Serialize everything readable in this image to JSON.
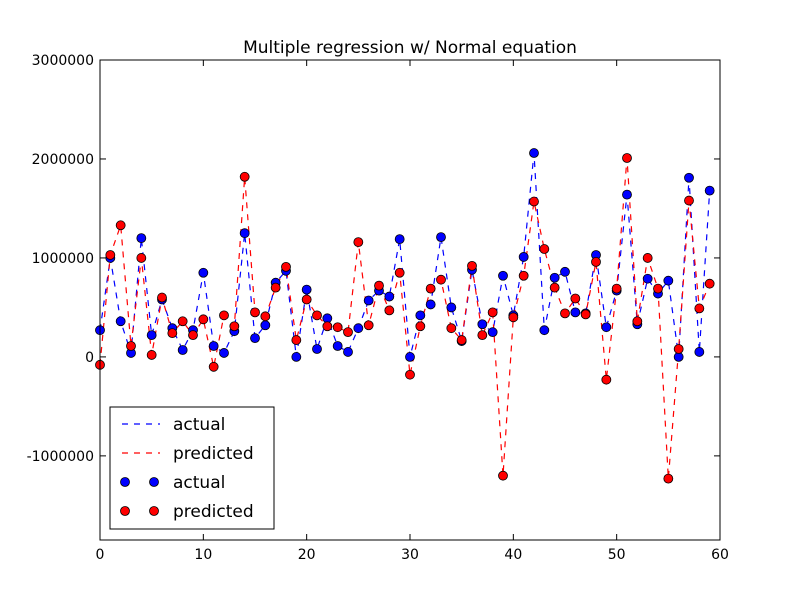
{
  "chart_data": {
    "type": "line",
    "title": "Multiple regression w/ Normal equation",
    "xlabel": "",
    "ylabel": "",
    "xlim": [
      0,
      60
    ],
    "ylim": [
      -1850000,
      3000000
    ],
    "x_ticks": [
      "0",
      "10",
      "20",
      "30",
      "40",
      "50",
      "60"
    ],
    "y_ticks": [
      "-1000000",
      "0",
      "1000000",
      "2000000",
      "3000000"
    ],
    "x_tick_values": [
      0,
      10,
      20,
      30,
      40,
      50,
      60
    ],
    "y_tick_values": [
      -1000000,
      0,
      1000000,
      2000000,
      3000000
    ],
    "grid": false,
    "legend_position": "lower-left",
    "legend": [
      "actual",
      "predicted",
      "actual",
      "predicted"
    ],
    "x": [
      0,
      1,
      2,
      3,
      4,
      5,
      6,
      7,
      8,
      9,
      10,
      11,
      12,
      13,
      14,
      15,
      16,
      17,
      18,
      19,
      20,
      21,
      22,
      23,
      24,
      25,
      26,
      27,
      28,
      29,
      30,
      31,
      32,
      33,
      34,
      35,
      36,
      37,
      38,
      39,
      40,
      41,
      42,
      43,
      44,
      45,
      46,
      47,
      48,
      49,
      50,
      51,
      52,
      53,
      54,
      55,
      56,
      57,
      58,
      59
    ],
    "series": [
      {
        "name": "actual",
        "color": "#0000ff",
        "line_style": "dashed",
        "values": [
          270000,
          1000000,
          360000,
          40000,
          1200000,
          220000,
          580000,
          290000,
          70000,
          270000,
          850000,
          110000,
          40000,
          260000,
          1250000,
          190000,
          320000,
          750000,
          870000,
          0,
          680000,
          80000,
          390000,
          110000,
          50000,
          290000,
          570000,
          670000,
          610000,
          1190000,
          0,
          420000,
          530000,
          1210000,
          500000,
          160000,
          880000,
          330000,
          250000,
          820000,
          420000,
          1010000,
          2060000,
          270000,
          800000,
          860000,
          450000,
          440000,
          1030000,
          300000,
          670000,
          1640000,
          330000,
          790000,
          640000,
          770000,
          0,
          1810000,
          50000,
          1680000
        ]
      },
      {
        "name": "predicted",
        "color": "#ff0000",
        "line_style": "dashed",
        "values": [
          -80000,
          1030000,
          1330000,
          110000,
          1000000,
          20000,
          600000,
          240000,
          360000,
          220000,
          380000,
          -100000,
          420000,
          310000,
          1820000,
          450000,
          410000,
          700000,
          910000,
          170000,
          580000,
          420000,
          310000,
          300000,
          250000,
          1160000,
          320000,
          720000,
          470000,
          850000,
          -180000,
          310000,
          690000,
          780000,
          290000,
          170000,
          920000,
          220000,
          450000,
          -1200000,
          400000,
          820000,
          1570000,
          1090000,
          700000,
          440000,
          590000,
          430000,
          960000,
          -230000,
          690000,
          2010000,
          360000,
          1000000,
          690000,
          -1230000,
          80000,
          1580000,
          490000,
          740000
        ]
      }
    ]
  }
}
